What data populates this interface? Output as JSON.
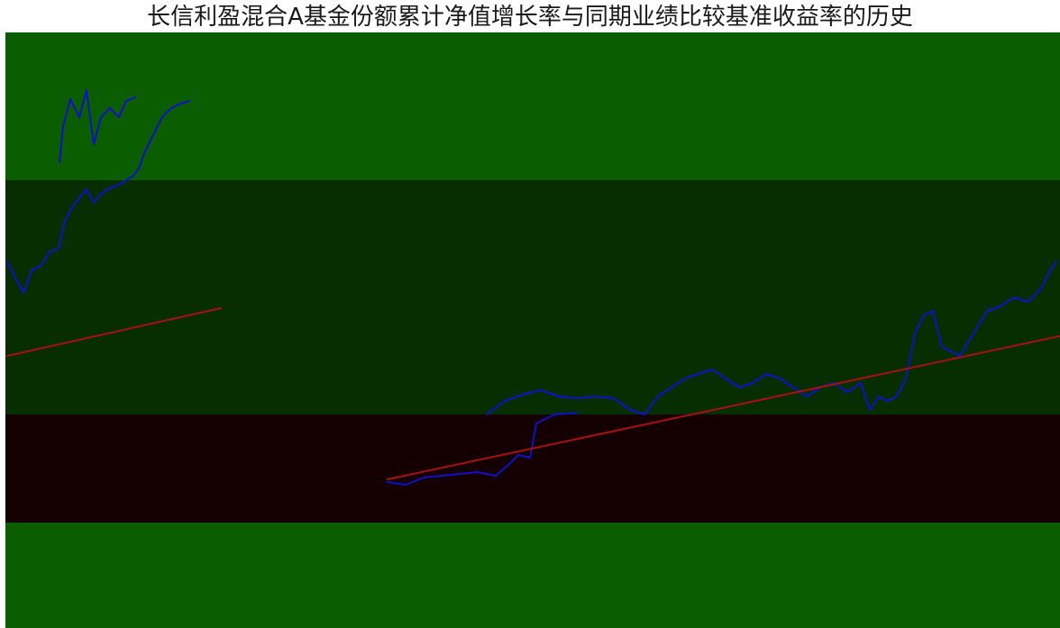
{
  "title": "长信利盈混合A基金份额累计净值增长率与同期业绩比较基准收益率的历史",
  "colors": {
    "background": "#ffffff",
    "band_green": "#0b5e00",
    "band_dark_green": "#062e00",
    "band_maroon": "#140000",
    "series_blue": "#1010cc",
    "series_red": "#aa1010"
  },
  "chart_data": {
    "type": "line",
    "series": [
      {
        "color": "#1010cc",
        "points": [
          [
            8,
            290
          ],
          [
            18,
            310
          ],
          [
            26,
            325
          ],
          [
            35,
            300
          ],
          [
            45,
            295
          ],
          [
            55,
            280
          ],
          [
            65,
            275
          ],
          [
            72,
            245
          ],
          [
            80,
            230
          ],
          [
            88,
            220
          ],
          [
            96,
            210
          ],
          [
            104,
            225
          ],
          [
            112,
            215
          ],
          [
            120,
            210
          ],
          [
            132,
            205
          ],
          [
            140,
            200
          ],
          [
            148,
            195
          ],
          [
            155,
            185
          ],
          [
            160,
            170
          ],
          [
            170,
            150
          ],
          [
            180,
            130
          ],
          [
            190,
            120
          ],
          [
            200,
            115
          ],
          [
            210,
            112
          ]
        ]
      },
      {
        "color": "#1010cc",
        "points": [
          [
            66,
            180
          ],
          [
            70,
            140
          ],
          [
            78,
            110
          ],
          [
            88,
            130
          ],
          [
            96,
            100
          ],
          [
            104,
            160
          ],
          [
            112,
            130
          ],
          [
            122,
            120
          ],
          [
            132,
            130
          ],
          [
            140,
            112
          ],
          [
            150,
            108
          ]
        ]
      },
      {
        "color": "#1010cc",
        "points": [
          [
            430,
            535
          ],
          [
            450,
            538
          ],
          [
            470,
            530
          ],
          [
            490,
            528
          ],
          [
            510,
            526
          ],
          [
            530,
            524
          ],
          [
            550,
            528
          ],
          [
            565,
            515
          ],
          [
            575,
            505
          ],
          [
            588,
            508
          ],
          [
            595,
            470
          ],
          [
            605,
            465
          ],
          [
            615,
            460
          ],
          [
            640,
            458
          ]
        ]
      },
      {
        "color": "#1010cc",
        "points": [
          [
            540,
            460
          ],
          [
            560,
            445
          ],
          [
            580,
            438
          ],
          [
            600,
            433
          ],
          [
            620,
            440
          ],
          [
            640,
            442
          ],
          [
            660,
            440
          ],
          [
            680,
            442
          ],
          [
            700,
            455
          ],
          [
            715,
            460
          ],
          [
            730,
            440
          ],
          [
            745,
            430
          ],
          [
            760,
            420
          ],
          [
            775,
            415
          ],
          [
            790,
            410
          ],
          [
            805,
            420
          ],
          [
            820,
            430
          ],
          [
            835,
            425
          ],
          [
            850,
            415
          ],
          [
            865,
            420
          ],
          [
            880,
            430
          ],
          [
            895,
            440
          ],
          [
            910,
            430
          ],
          [
            925,
            425
          ],
          [
            940,
            435
          ],
          [
            955,
            425
          ],
          [
            965,
            455
          ],
          [
            975,
            440
          ],
          [
            985,
            445
          ],
          [
            995,
            440
          ],
          [
            1005,
            420
          ],
          [
            1015,
            370
          ],
          [
            1025,
            350
          ],
          [
            1035,
            345
          ],
          [
            1045,
            385
          ],
          [
            1055,
            390
          ],
          [
            1065,
            395
          ],
          [
            1080,
            370
          ],
          [
            1095,
            345
          ],
          [
            1110,
            340
          ],
          [
            1125,
            330
          ],
          [
            1140,
            335
          ],
          [
            1155,
            320
          ],
          [
            1165,
            300
          ],
          [
            1172,
            290
          ]
        ]
      },
      {
        "color": "#aa1010",
        "points": [
          [
            8,
            395
          ],
          [
            245,
            342
          ]
        ]
      },
      {
        "color": "#aa1010",
        "points": [
          [
            430,
            532
          ],
          [
            1176,
            373
          ]
        ]
      }
    ]
  }
}
